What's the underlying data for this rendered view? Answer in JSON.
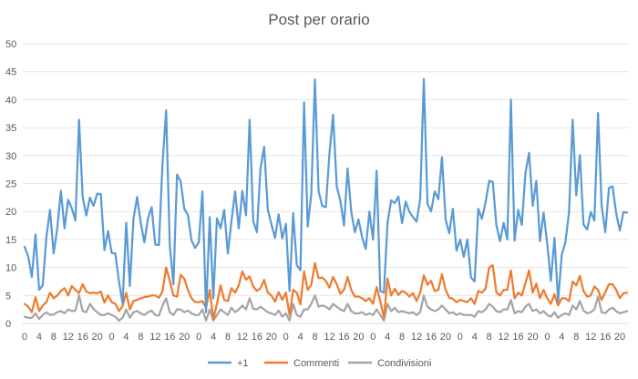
{
  "chart_data": {
    "type": "line",
    "title": "Post per orario",
    "xlabel": "",
    "ylabel": "",
    "ylim": [
      0,
      50
    ],
    "y_ticks": [
      0,
      5,
      10,
      15,
      20,
      25,
      30,
      35,
      40,
      45,
      50
    ],
    "grid": true,
    "legend_position": "bottom",
    "x_tick_pattern": [
      "0",
      "4",
      "8",
      "12",
      "16",
      "20"
    ],
    "series": [
      {
        "name": "+1",
        "color": "#5B9BD5",
        "values": [
          13.7,
          12.0,
          8.3,
          15.9,
          6.0,
          6.8,
          15.4,
          20.3,
          12.5,
          17.0,
          23.7,
          17.0,
          22.1,
          20.6,
          18.4,
          36.4,
          22.6,
          19.3,
          22.5,
          21.0,
          23.2,
          23.1,
          13.1,
          16.5,
          12.6,
          12.5,
          7.5,
          3.6,
          18.0,
          6.7,
          18.7,
          22.6,
          18.0,
          14.5,
          18.8,
          20.8,
          14.1,
          14.0,
          28.6,
          38.1,
          14.0,
          7.0,
          26.6,
          25.4,
          20.5,
          19.4,
          14.8,
          13.5,
          14.5,
          23.6,
          2.0,
          19.0,
          4.5,
          18.8,
          17.0,
          20.3,
          12.5,
          18.3,
          23.6,
          17.0,
          23.7,
          19.3,
          36.4,
          18.3,
          16.3,
          27.7,
          31.6,
          20.4,
          17.7,
          15.3,
          19.5,
          15.2,
          17.8,
          5.8,
          19.7,
          10.4,
          9.5,
          39.5,
          17.3,
          23.2,
          43.6,
          23.7,
          21.0,
          20.8,
          30.4,
          37.3,
          24.5,
          21.9,
          17.5,
          27.7,
          20.0,
          16.3,
          18.6,
          15.4,
          13.3,
          20.0,
          15.0,
          27.3,
          5.8,
          5.5,
          18.0,
          22.0,
          21.5,
          22.7,
          17.9,
          21.8,
          20.0,
          19.0,
          18.2,
          22.2,
          43.7,
          21.4,
          20.0,
          23.6,
          22.2,
          29.7,
          18.6,
          16.1,
          20.5,
          13.0,
          15.0,
          11.9,
          15.0,
          8.2,
          7.5,
          20.5,
          18.7,
          21.6,
          25.5,
          25.3,
          17.5,
          14.7,
          18.0,
          15.0,
          40.0,
          14.8,
          20.3,
          17.6,
          26.9,
          30.5,
          21.0,
          25.5,
          14.7,
          19.8,
          14.3,
          7.6,
          15.3,
          4.0,
          12.2,
          14.5,
          19.8,
          36.4,
          22.9,
          30.1,
          17.7,
          16.8,
          19.9,
          18.4,
          37.6,
          21.0,
          16.3,
          24.2,
          24.5,
          19.7,
          16.6,
          19.9,
          19.8
        ]
      },
      {
        "name": "Commenti",
        "color": "#ED7D31",
        "values": [
          3.5,
          3.0,
          2.0,
          4.7,
          2.2,
          3.2,
          3.8,
          5.5,
          4.5,
          5.0,
          5.8,
          6.3,
          5.0,
          6.7,
          6.0,
          5.4,
          7.0,
          5.7,
          5.4,
          5.5,
          5.4,
          5.7,
          3.7,
          5.0,
          3.8,
          3.5,
          2.2,
          3.1,
          5.5,
          2.5,
          4.0,
          4.2,
          4.5,
          4.7,
          4.8,
          5.0,
          5.0,
          4.6,
          5.7,
          10.0,
          7.6,
          5.0,
          4.8,
          8.7,
          8.0,
          6.0,
          4.5,
          3.8,
          3.8,
          4.0,
          2.8,
          6.0,
          0.8,
          3.5,
          6.8,
          4.2,
          4.0,
          6.3,
          5.5,
          6.8,
          9.3,
          7.8,
          8.4,
          6.6,
          5.8,
          6.3,
          7.8,
          5.5,
          5.0,
          3.9,
          5.6,
          4.2,
          5.5,
          1.5,
          6.0,
          5.5,
          3.4,
          9.3,
          6.0,
          6.9,
          10.8,
          8.1,
          8.2,
          7.6,
          6.4,
          8.3,
          7.0,
          5.3,
          6.0,
          8.3,
          6.0,
          4.8,
          4.8,
          4.5,
          4.0,
          4.5,
          3.5,
          6.5,
          4.0,
          1.0,
          8.0,
          5.0,
          6.2,
          5.1,
          5.8,
          5.5,
          4.8,
          5.4,
          4.0,
          5.5,
          8.6,
          6.9,
          7.6,
          5.8,
          6.0,
          8.8,
          6.0,
          4.6,
          4.4,
          3.8,
          4.2,
          4.0,
          3.8,
          4.5,
          3.5,
          5.8,
          5.5,
          6.2,
          10.0,
          10.4,
          5.5,
          5.0,
          6.0,
          6.0,
          9.5,
          4.5,
          5.5,
          5.0,
          7.2,
          9.5,
          5.5,
          7.1,
          4.5,
          6.0,
          4.5,
          3.5,
          5.2,
          3.2,
          4.5,
          4.5,
          4.0,
          7.5,
          6.8,
          8.5,
          5.8,
          4.8,
          5.0,
          6.6,
          6.0,
          4.2,
          5.6,
          7.0,
          7.0,
          6.0,
          4.5,
          5.4,
          5.5
        ]
      },
      {
        "name": "Condivisioni",
        "color": "#A5A5A5",
        "values": [
          1.2,
          1.0,
          1.0,
          1.8,
          0.8,
          1.5,
          2.0,
          1.5,
          1.6,
          2.0,
          2.2,
          1.8,
          2.5,
          2.2,
          2.3,
          5.0,
          2.2,
          2.0,
          3.5,
          2.6,
          2.0,
          1.5,
          1.5,
          1.8,
          1.5,
          1.2,
          0.5,
          1.0,
          2.5,
          1.0,
          2.0,
          2.2,
          1.8,
          1.5,
          2.0,
          2.3,
          1.5,
          1.4,
          3.2,
          4.5,
          2.0,
          1.5,
          2.5,
          2.5,
          2.0,
          2.3,
          1.8,
          1.5,
          1.5,
          2.5,
          0.5,
          2.5,
          0.5,
          1.5,
          2.5,
          2.0,
          1.5,
          2.8,
          2.0,
          2.5,
          3.2,
          2.5,
          4.5,
          2.6,
          2.5,
          3.0,
          2.5,
          2.0,
          1.8,
          1.5,
          2.3,
          1.2,
          1.8,
          0.5,
          3.5,
          1.5,
          1.2,
          2.5,
          2.5,
          3.5,
          5.0,
          3.0,
          3.2,
          3.0,
          2.5,
          3.5,
          3.0,
          2.5,
          2.2,
          3.5,
          2.2,
          1.8,
          1.8,
          2.0,
          1.5,
          1.8,
          1.5,
          2.5,
          1.5,
          0.5,
          3.5,
          2.2,
          2.8,
          2.0,
          2.2,
          2.0,
          1.8,
          2.0,
          1.5,
          2.0,
          5.0,
          3.0,
          2.5,
          2.2,
          2.5,
          3.2,
          2.5,
          1.8,
          2.0,
          1.5,
          1.8,
          1.5,
          1.5,
          1.5,
          1.2,
          2.2,
          2.0,
          2.5,
          3.5,
          3.0,
          2.2,
          2.0,
          2.5,
          2.5,
          4.2,
          1.8,
          2.2,
          2.0,
          3.0,
          3.5,
          2.2,
          2.5,
          1.8,
          2.2,
          1.5,
          1.2,
          2.0,
          1.0,
          1.5,
          1.8,
          1.5,
          3.2,
          2.5,
          4.0,
          2.3,
          1.8,
          2.0,
          2.5,
          4.8,
          2.0,
          1.8,
          2.5,
          2.8,
          2.2,
          1.8,
          2.0,
          2.2
        ]
      }
    ]
  }
}
